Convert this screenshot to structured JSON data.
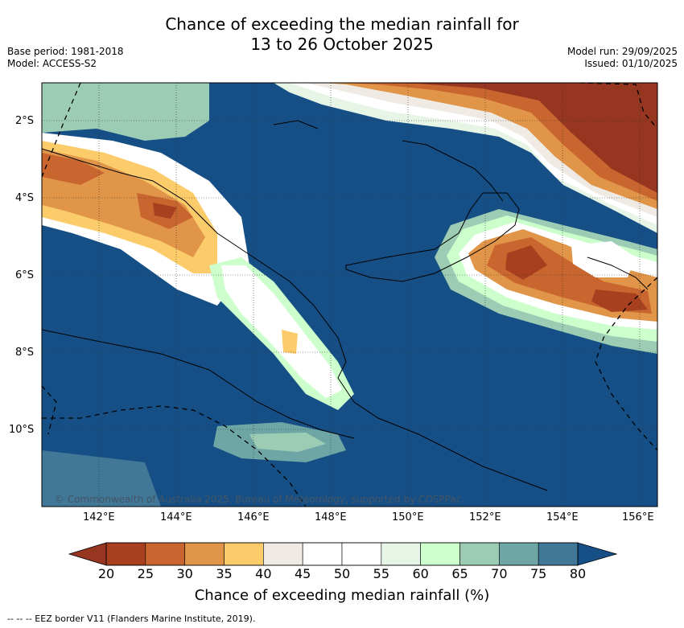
{
  "title_line1": "Chance of exceeding the median rainfall for",
  "title_line2": "13 to 26 October 2025",
  "base_period": "Base period: 1981-2018",
  "model": "Model: ACCESS-S2",
  "model_run": "Model run: 29/09/2025",
  "issued": "Issued: 01/10/2025",
  "copyright": "© Commonwealth of Australia 2025, Bureau of Meteorology, supported by COSPPac",
  "lat_labels": [
    "2°S",
    "4°S",
    "6°S",
    "8°S",
    "10°S"
  ],
  "lon_labels": [
    "142°E",
    "144°E",
    "146°E",
    "148°E",
    "150°E",
    "152°E",
    "154°E",
    "156°E"
  ],
  "colorbar": {
    "ticks": [
      "20",
      "25",
      "30",
      "35",
      "40",
      "45",
      "50",
      "55",
      "60",
      "65",
      "70",
      "75",
      "80"
    ],
    "colors": [
      "#a8401f",
      "#c9652f",
      "#e09548",
      "#fccc6b",
      "#efebe4",
      "#ffffff",
      "#ffffff",
      "#e7f5e7",
      "#ccffcc",
      "#9ccdb4",
      "#6ea6a6",
      "#417797"
    ],
    "under_color": "#963520",
    "over_color": "#154f86",
    "label": "Chance of exceeding median rainfall (%)"
  },
  "footer": "-- -- -- EEZ border V11 (Flanders Marine Institute, 2019)."
}
